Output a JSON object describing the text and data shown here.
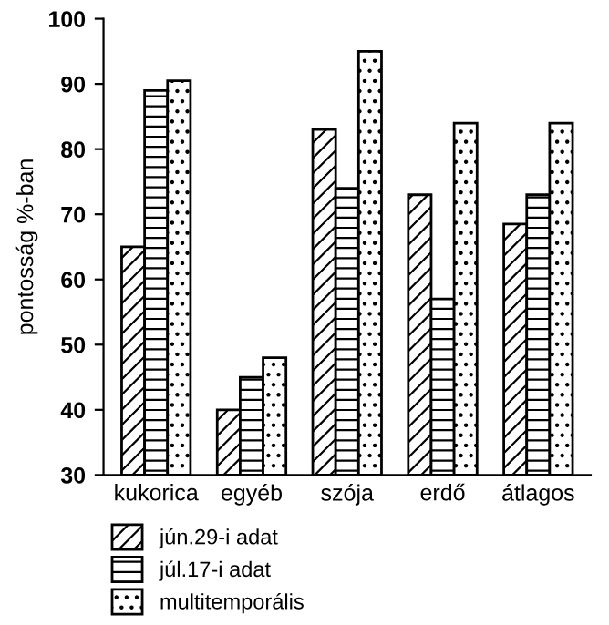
{
  "chart_data": {
    "type": "bar",
    "ylabel": "pontosság %-ban",
    "categories": [
      "kukorica",
      "egyéb",
      "szója",
      "erdő",
      "átlagos"
    ],
    "series": [
      {
        "name": "jún.29-i adat",
        "color": "#000000",
        "values": [
          65,
          40,
          83,
          73,
          68.5
        ]
      },
      {
        "name": "júl.17-i adat",
        "color": "#000000",
        "values": [
          89,
          45,
          74,
          57,
          73
        ]
      },
      {
        "name": "multitemporális",
        "color": "#000000",
        "values": [
          90.5,
          48,
          95,
          84,
          84
        ]
      }
    ],
    "ylim": [
      30,
      100
    ],
    "yticks": [
      30,
      40,
      50,
      60,
      70,
      80,
      90,
      100
    ],
    "grid": false,
    "legend": "bottom left"
  }
}
